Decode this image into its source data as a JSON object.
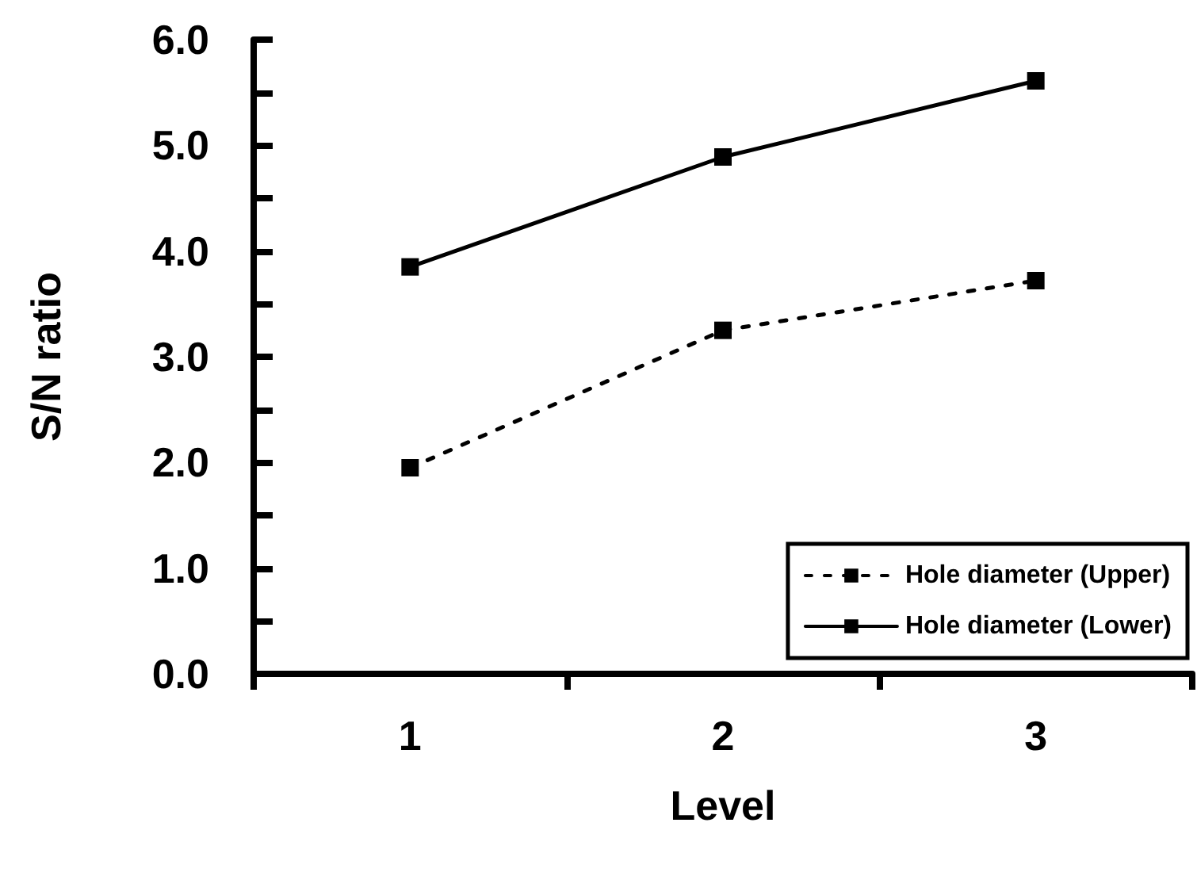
{
  "chart_data": {
    "type": "line",
    "xlabel": "Level",
    "ylabel": "S/N ratio",
    "categories": [
      "1",
      "2",
      "3"
    ],
    "series": [
      {
        "name": "Hole diameter (Upper)",
        "color": "#000000",
        "values": [
          1.95,
          3.25,
          3.72
        ],
        "line_style": "dashed"
      },
      {
        "name": "Hole diameter (Lower)",
        "color": "#000000",
        "values": [
          3.85,
          4.89,
          5.61
        ],
        "line_style": "solid"
      }
    ],
    "ylim": [
      0,
      6
    ],
    "yticks": [
      {
        "value": 0,
        "label": "0.0"
      },
      {
        "value": 0.5,
        "label": null
      },
      {
        "value": 1,
        "label": "1.0"
      },
      {
        "value": 1.5,
        "label": null
      },
      {
        "value": 2,
        "label": "2.0"
      },
      {
        "value": 2.5,
        "label": null
      },
      {
        "value": 3,
        "label": "3.0"
      },
      {
        "value": 3.5,
        "label": null
      },
      {
        "value": 4,
        "label": "4.0"
      },
      {
        "value": 4.5,
        "label": null
      },
      {
        "value": 5,
        "label": "5.0"
      },
      {
        "value": 5.5,
        "label": null
      },
      {
        "value": 6,
        "label": "6.0"
      }
    ],
    "grid": false,
    "legend": "bottom right",
    "marker": "square"
  }
}
